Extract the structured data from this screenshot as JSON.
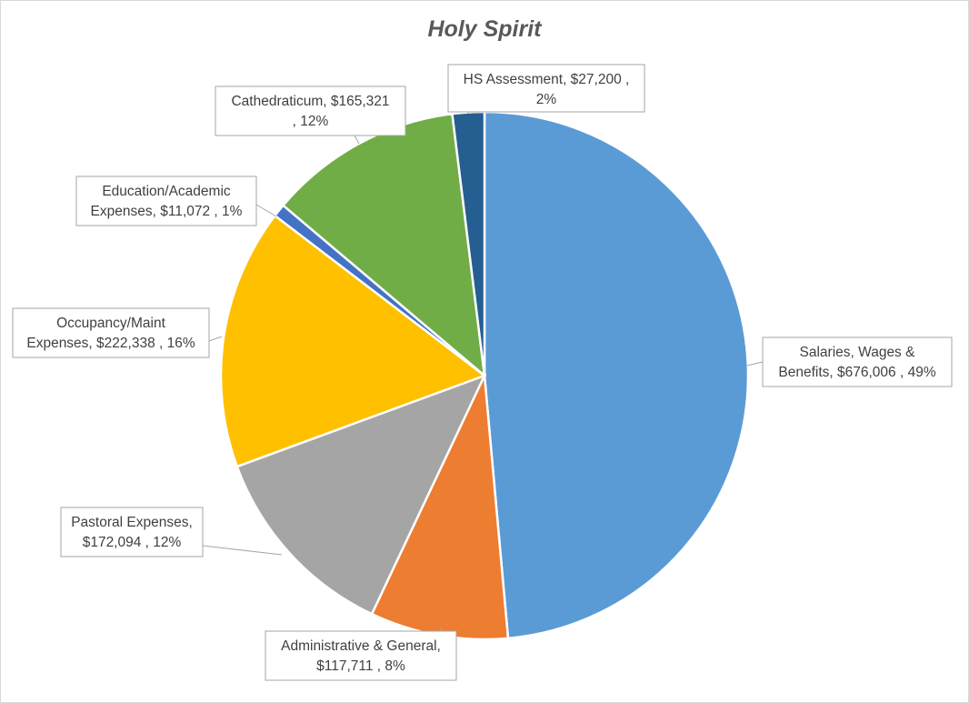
{
  "chart_data": {
    "type": "pie",
    "title": "Holy Spirit",
    "slices": [
      {
        "category": "Salaries, Wages & Benefits",
        "value": 676006,
        "percent": "49%",
        "color": "#5b9bd5",
        "label_lines": [
          "Salaries, Wages &",
          "Benefits,  $676,006 , 49%"
        ]
      },
      {
        "category": "Administrative & General",
        "value": 117711,
        "percent": "8%",
        "color": "#ed7d31",
        "label_lines": [
          "Administrative & General,",
          "$117,711 , 8%"
        ]
      },
      {
        "category": "Pastoral Expenses",
        "value": 172094,
        "percent": "12%",
        "color": "#a5a5a5",
        "label_lines": [
          "Pastoral Expenses,",
          "$172,094 , 12%"
        ]
      },
      {
        "category": "Occupancy/Maint Expenses",
        "value": 222338,
        "percent": "16%",
        "color": "#ffc000",
        "label_lines": [
          "Occupancy/Maint",
          "Expenses,  $222,338 , 16%"
        ]
      },
      {
        "category": "Education/Academic Expenses",
        "value": 11072,
        "percent": "1%",
        "color": "#4472c4",
        "label_lines": [
          "Education/Academic",
          "Expenses,  $11,072 , 1%"
        ]
      },
      {
        "category": "Cathedraticum",
        "value": 165321,
        "percent": "12%",
        "color": "#70ad47",
        "label_lines": [
          "Cathedraticum,  $165,321",
          ", 12%"
        ]
      },
      {
        "category": "HS Assessment",
        "value": 27200,
        "percent": "2%",
        "color": "#255e91",
        "label_lines": [
          "HS Assessment,  $27,200 ,",
          "2%"
        ]
      }
    ],
    "legend": "none"
  }
}
